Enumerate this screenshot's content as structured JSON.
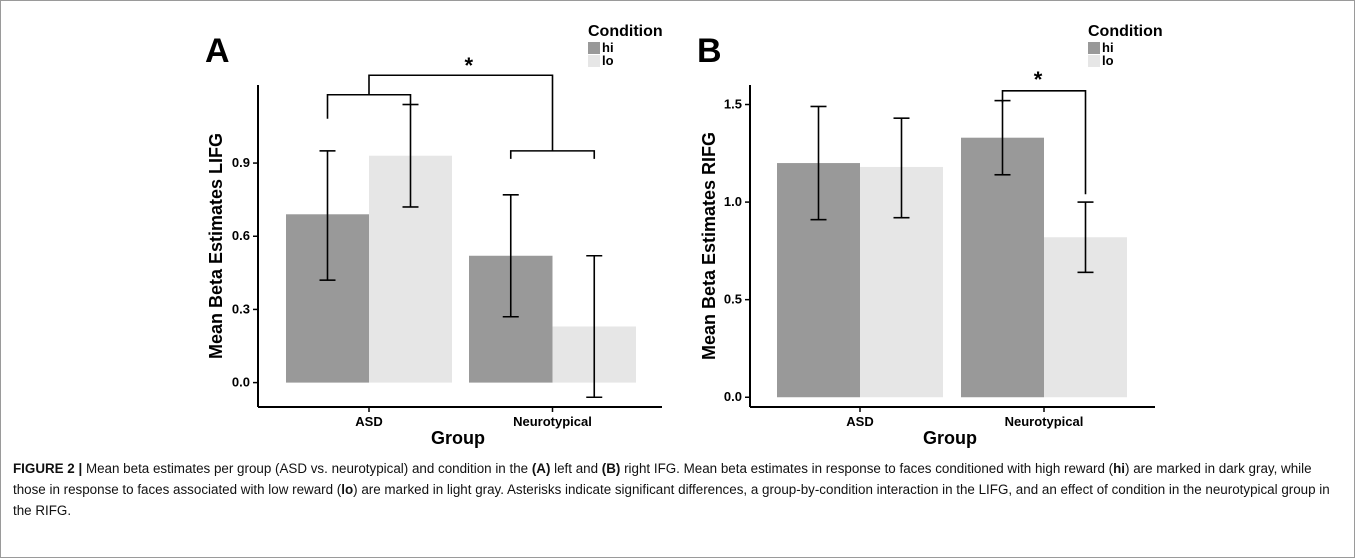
{
  "figure": {
    "caption": {
      "label": "FIGURE 2 |",
      "segments": [
        {
          "text": " Mean beta estimates per group (ASD vs. neurotypical) and condition in the ",
          "bold": false
        },
        {
          "text": "(A)",
          "bold": true
        },
        {
          "text": " left and ",
          "bold": false
        },
        {
          "text": "(B)",
          "bold": true
        },
        {
          "text": " right IFG. Mean beta estimates in response to faces conditioned with high reward (",
          "bold": false
        },
        {
          "text": "hi",
          "bold": true
        },
        {
          "text": ") are marked in dark gray, while those in response to faces associated with low reward (",
          "bold": false
        },
        {
          "text": "lo",
          "bold": true
        },
        {
          "text": ") are marked in light gray. Asterisks indicate significant differences, a group-by-condition interaction in the LIFG, and an effect of condition in the neurotypical group in the RIFG.",
          "bold": false
        }
      ]
    }
  },
  "colors": {
    "hi": "#999999",
    "lo": "#e6e6e6",
    "axis": "#000000"
  },
  "chart_data": [
    {
      "panel": "A",
      "type": "bar",
      "xlabel": "Group",
      "ylabel": "Mean Beta Estimates LIFG",
      "categories": [
        "ASD",
        "Neurotypical"
      ],
      "ylim": [
        -0.1,
        1.22
      ],
      "yticks": [
        "0.0",
        "0.3",
        "0.6",
        "0.9"
      ],
      "legend": {
        "title": "Condition",
        "position": "top-right"
      },
      "series": [
        {
          "name": "hi",
          "values": [
            0.69,
            0.52
          ],
          "err_low": [
            0.42,
            0.27
          ],
          "err_high": [
            0.95,
            0.77
          ]
        },
        {
          "name": "lo",
          "values": [
            0.93,
            0.23
          ],
          "err_low": [
            0.72,
            -0.06
          ],
          "err_high": [
            1.14,
            0.52
          ]
        }
      ],
      "significance": [
        {
          "label": "*",
          "type": "interaction",
          "between": [
            "ASD",
            "Neurotypical"
          ],
          "bracket_y": [
            1.18,
            0.95,
            1.26
          ]
        }
      ],
      "grid": false
    },
    {
      "panel": "B",
      "type": "bar",
      "xlabel": "Group",
      "ylabel": "Mean Beta Estimates RIFG",
      "categories": [
        "ASD",
        "Neurotypical"
      ],
      "ylim": [
        -0.05,
        1.6
      ],
      "yticks": [
        "0.0",
        "0.5",
        "1.0",
        "1.5"
      ],
      "legend": {
        "title": "Condition",
        "position": "top-right"
      },
      "series": [
        {
          "name": "hi",
          "values": [
            1.2,
            1.33
          ],
          "err_low": [
            0.91,
            1.14
          ],
          "err_high": [
            1.49,
            1.52
          ]
        },
        {
          "name": "lo",
          "values": [
            1.18,
            0.82
          ],
          "err_low": [
            0.92,
            0.64
          ],
          "err_high": [
            1.43,
            1.0
          ]
        }
      ],
      "significance": [
        {
          "label": "*",
          "type": "condition",
          "category": "Neurotypical",
          "bracket_y": [
            1.53,
            1.03,
            1.57
          ]
        }
      ],
      "grid": false
    }
  ]
}
